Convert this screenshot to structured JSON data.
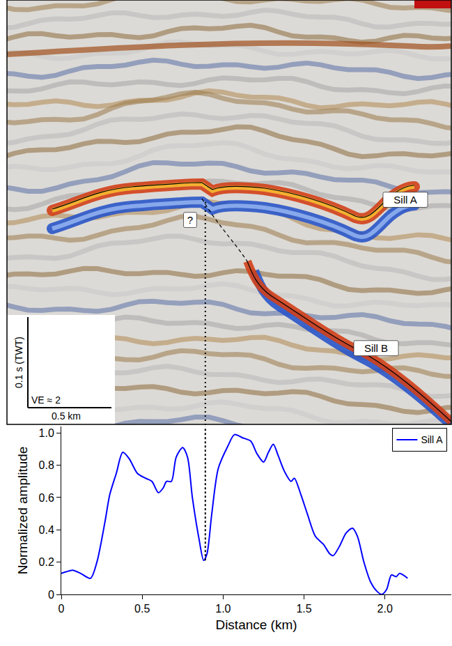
{
  "chart_data": {
    "type": "line",
    "xlabel": "Distance (km)",
    "ylabel": "Normalized amplitude",
    "x": [
      0,
      0.03,
      0.07,
      0.12,
      0.18,
      0.22,
      0.27,
      0.3,
      0.34,
      0.38,
      0.42,
      0.47,
      0.52,
      0.56,
      0.6,
      0.63,
      0.65,
      0.68,
      0.71,
      0.75,
      0.78,
      0.81,
      0.85,
      0.88,
      0.9,
      0.93,
      0.97,
      1.03,
      1.07,
      1.12,
      1.17,
      1.21,
      1.25,
      1.28,
      1.31,
      1.34,
      1.38,
      1.42,
      1.44,
      1.48,
      1.52,
      1.57,
      1.62,
      1.66,
      1.68,
      1.72,
      1.76,
      1.8,
      1.83,
      1.87,
      1.91,
      1.95,
      1.98,
      2.01,
      2.04,
      2.07,
      2.09,
      2.14
    ],
    "series": [
      {
        "name": "Sill A",
        "color": "#0000ff",
        "line_style": "solid",
        "values": [
          0.13,
          0.14,
          0.15,
          0.13,
          0.1,
          0.2,
          0.45,
          0.62,
          0.75,
          0.88,
          0.84,
          0.75,
          0.72,
          0.7,
          0.63,
          0.66,
          0.7,
          0.7,
          0.85,
          0.91,
          0.85,
          0.6,
          0.35,
          0.21,
          0.25,
          0.5,
          0.78,
          0.92,
          0.99,
          0.97,
          0.95,
          0.87,
          0.82,
          0.88,
          0.93,
          0.86,
          0.76,
          0.7,
          0.72,
          0.62,
          0.5,
          0.36,
          0.31,
          0.25,
          0.24,
          0.3,
          0.38,
          0.41,
          0.36,
          0.2,
          0.08,
          0.02,
          0.0,
          0.03,
          0.12,
          0.11,
          0.13,
          0.1
        ]
      }
    ],
    "xlim": [
      0,
      2.41
    ],
    "ylim": [
      0,
      1.04
    ],
    "xticks": [
      0,
      0.5,
      {
        "value": 1,
        "label": "1.0"
      },
      1.5,
      {
        "value": 2,
        "label": "2.0"
      }
    ],
    "yticks": [
      0,
      0.2,
      0.4,
      0.6,
      0.8,
      {
        "value": 1,
        "label": "1.0"
      }
    ],
    "grid": false,
    "legend": "top-right",
    "reference_x": 0.89
  },
  "seismic_section": {
    "labels": {
      "sill_a": "Sill A",
      "sill_b": "Sill B",
      "query": "?"
    },
    "scale_bar": {
      "vertical": "0.1 s (TWT)",
      "exaggeration": "VE ≈ 2",
      "horizontal": "0.5 km"
    }
  }
}
